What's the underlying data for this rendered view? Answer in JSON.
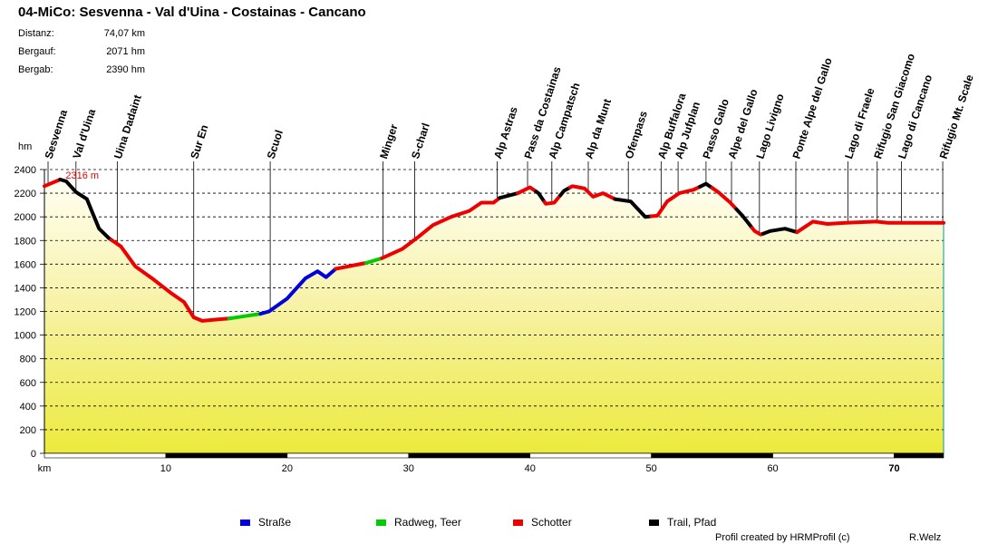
{
  "title": "04-MiCo: Sesvenna - Val d'Uina - Costainas - Cancano",
  "stats": [
    {
      "label": "Distanz:",
      "value": "74,07 km"
    },
    {
      "label": "Bergauf:",
      "value": "2071 hm"
    },
    {
      "label": "Bergab:",
      "value": "2390 hm"
    }
  ],
  "legend": [
    {
      "label": "Straße",
      "color": "#0000dd"
    },
    {
      "label": "Radweg, Teer",
      "color": "#00cc00"
    },
    {
      "label": "Schotter",
      "color": "#ee0000"
    },
    {
      "label": "Trail, Pfad",
      "color": "#000000"
    }
  ],
  "credit": "Profil created by HRMProfil (c)",
  "author": "R.Welz",
  "chart_data": {
    "type": "area",
    "title": "04-MiCo: Sesvenna - Val d'Uina - Costainas - Cancano",
    "xlabel": "km",
    "ylabel": "hm",
    "xlim": [
      0,
      74.07
    ],
    "ylim": [
      0,
      2400
    ],
    "x_ticks": [
      10,
      20,
      30,
      40,
      50,
      60,
      70
    ],
    "y_ticks": [
      0,
      200,
      400,
      600,
      800,
      1000,
      1200,
      1400,
      1600,
      1800,
      2000,
      2200,
      2400
    ],
    "max_label": "2316 m",
    "max_point": {
      "x": 1.3,
      "y": 2316
    },
    "profile": [
      {
        "x": 0,
        "y": 2260
      },
      {
        "x": 1.3,
        "y": 2316
      },
      {
        "x": 1.8,
        "y": 2300
      },
      {
        "x": 2.6,
        "y": 2210
      },
      {
        "x": 3.5,
        "y": 2150
      },
      {
        "x": 3.9,
        "y": 2050
      },
      {
        "x": 4.5,
        "y": 1900
      },
      {
        "x": 5.3,
        "y": 1820
      },
      {
        "x": 6.3,
        "y": 1750
      },
      {
        "x": 7.5,
        "y": 1580
      },
      {
        "x": 9,
        "y": 1470
      },
      {
        "x": 10.5,
        "y": 1350
      },
      {
        "x": 11.5,
        "y": 1280
      },
      {
        "x": 12.3,
        "y": 1150
      },
      {
        "x": 13,
        "y": 1120
      },
      {
        "x": 14,
        "y": 1130
      },
      {
        "x": 15.2,
        "y": 1140
      },
      {
        "x": 16.5,
        "y": 1160
      },
      {
        "x": 17.8,
        "y": 1180
      },
      {
        "x": 18.5,
        "y": 1200
      },
      {
        "x": 20,
        "y": 1310
      },
      {
        "x": 21.5,
        "y": 1480
      },
      {
        "x": 22.5,
        "y": 1540
      },
      {
        "x": 23.2,
        "y": 1490
      },
      {
        "x": 24,
        "y": 1560
      },
      {
        "x": 25,
        "y": 1580
      },
      {
        "x": 26.5,
        "y": 1610
      },
      {
        "x": 27.8,
        "y": 1650
      },
      {
        "x": 29.5,
        "y": 1730
      },
      {
        "x": 30.8,
        "y": 1830
      },
      {
        "x": 32,
        "y": 1930
      },
      {
        "x": 33.5,
        "y": 2000
      },
      {
        "x": 35,
        "y": 2050
      },
      {
        "x": 36,
        "y": 2120
      },
      {
        "x": 37,
        "y": 2120
      },
      {
        "x": 37.5,
        "y": 2160
      },
      {
        "x": 39,
        "y": 2200
      },
      {
        "x": 40,
        "y": 2250
      },
      {
        "x": 40.7,
        "y": 2200
      },
      {
        "x": 41.3,
        "y": 2110
      },
      {
        "x": 42,
        "y": 2120
      },
      {
        "x": 42.8,
        "y": 2220
      },
      {
        "x": 43.5,
        "y": 2260
      },
      {
        "x": 44.5,
        "y": 2240
      },
      {
        "x": 45.2,
        "y": 2170
      },
      {
        "x": 46,
        "y": 2200
      },
      {
        "x": 47,
        "y": 2150
      },
      {
        "x": 48.3,
        "y": 2130
      },
      {
        "x": 49.5,
        "y": 2000
      },
      {
        "x": 50.5,
        "y": 2010
      },
      {
        "x": 51.3,
        "y": 2130
      },
      {
        "x": 52.3,
        "y": 2200
      },
      {
        "x": 53.5,
        "y": 2230
      },
      {
        "x": 54.5,
        "y": 2280
      },
      {
        "x": 55.5,
        "y": 2210
      },
      {
        "x": 56.5,
        "y": 2120
      },
      {
        "x": 57.5,
        "y": 2010
      },
      {
        "x": 58.5,
        "y": 1880
      },
      {
        "x": 59,
        "y": 1850
      },
      {
        "x": 59.8,
        "y": 1880
      },
      {
        "x": 61,
        "y": 1900
      },
      {
        "x": 62,
        "y": 1870
      },
      {
        "x": 63.3,
        "y": 1960
      },
      {
        "x": 64.5,
        "y": 1940
      },
      {
        "x": 66,
        "y": 1950
      },
      {
        "x": 68.5,
        "y": 1960
      },
      {
        "x": 69.5,
        "y": 1950
      },
      {
        "x": 72,
        "y": 1950
      },
      {
        "x": 74.07,
        "y": 1950
      }
    ],
    "surfaces": [
      {
        "from": 0,
        "to": 1.3,
        "type": "Schotter"
      },
      {
        "from": 1.3,
        "to": 5.5,
        "type": "Trail, Pfad"
      },
      {
        "from": 5.5,
        "to": 15.2,
        "type": "Schotter"
      },
      {
        "from": 15.2,
        "to": 17.8,
        "type": "Radweg, Teer"
      },
      {
        "from": 17.8,
        "to": 24,
        "type": "Straße"
      },
      {
        "from": 24,
        "to": 26.5,
        "type": "Schotter"
      },
      {
        "from": 26.5,
        "to": 27.8,
        "type": "Radweg, Teer"
      },
      {
        "from": 27.8,
        "to": 37.5,
        "type": "Schotter"
      },
      {
        "from": 37.5,
        "to": 39,
        "type": "Trail, Pfad"
      },
      {
        "from": 39,
        "to": 40.5,
        "type": "Schotter"
      },
      {
        "from": 40.5,
        "to": 41.2,
        "type": "Trail, Pfad"
      },
      {
        "from": 41.2,
        "to": 42.5,
        "type": "Schotter"
      },
      {
        "from": 42.5,
        "to": 43.3,
        "type": "Trail, Pfad"
      },
      {
        "from": 43.3,
        "to": 47,
        "type": "Schotter"
      },
      {
        "from": 47,
        "to": 50,
        "type": "Trail, Pfad"
      },
      {
        "from": 50,
        "to": 54,
        "type": "Schotter"
      },
      {
        "from": 54,
        "to": 55,
        "type": "Trail, Pfad"
      },
      {
        "from": 55,
        "to": 57,
        "type": "Schotter"
      },
      {
        "from": 57,
        "to": 58.3,
        "type": "Trail, Pfad"
      },
      {
        "from": 58.3,
        "to": 59.2,
        "type": "Schotter"
      },
      {
        "from": 59.2,
        "to": 62,
        "type": "Trail, Pfad"
      },
      {
        "from": 62,
        "to": 74.07,
        "type": "Schotter"
      }
    ],
    "waypoints": [
      {
        "name": "Sesvenna",
        "km": 0.3
      },
      {
        "name": "Val d'Uina",
        "km": 2.6
      },
      {
        "name": "Uina Dadaint",
        "km": 6.0
      },
      {
        "name": "Sur En",
        "km": 12.3
      },
      {
        "name": "Scuol",
        "km": 18.6
      },
      {
        "name": "Minger",
        "km": 27.9
      },
      {
        "name": "S-charl",
        "km": 30.5
      },
      {
        "name": "Alp Astras",
        "km": 37.3
      },
      {
        "name": "Pass da Costainas",
        "km": 39.8
      },
      {
        "name": "Alp Campatsch",
        "km": 41.8
      },
      {
        "name": "Alp da Munt",
        "km": 44.8
      },
      {
        "name": "Ofenpass",
        "km": 48.1
      },
      {
        "name": "Alp Buffalora",
        "km": 50.8
      },
      {
        "name": "Alp Jufplan",
        "km": 52.2
      },
      {
        "name": "Passo Gallo",
        "km": 54.5
      },
      {
        "name": "Alpe del Gallo",
        "km": 56.6
      },
      {
        "name": "Lago Livigno",
        "km": 58.9
      },
      {
        "name": "Ponte Alpe del Gallo",
        "km": 61.9
      },
      {
        "name": "Lago di Fraele",
        "km": 66.2
      },
      {
        "name": "Rifugio San Giacomo",
        "km": 68.6
      },
      {
        "name": "Lago di Cancano",
        "km": 70.6
      },
      {
        "name": "Rifugio Mt. Scale",
        "km": 74.0
      }
    ]
  }
}
